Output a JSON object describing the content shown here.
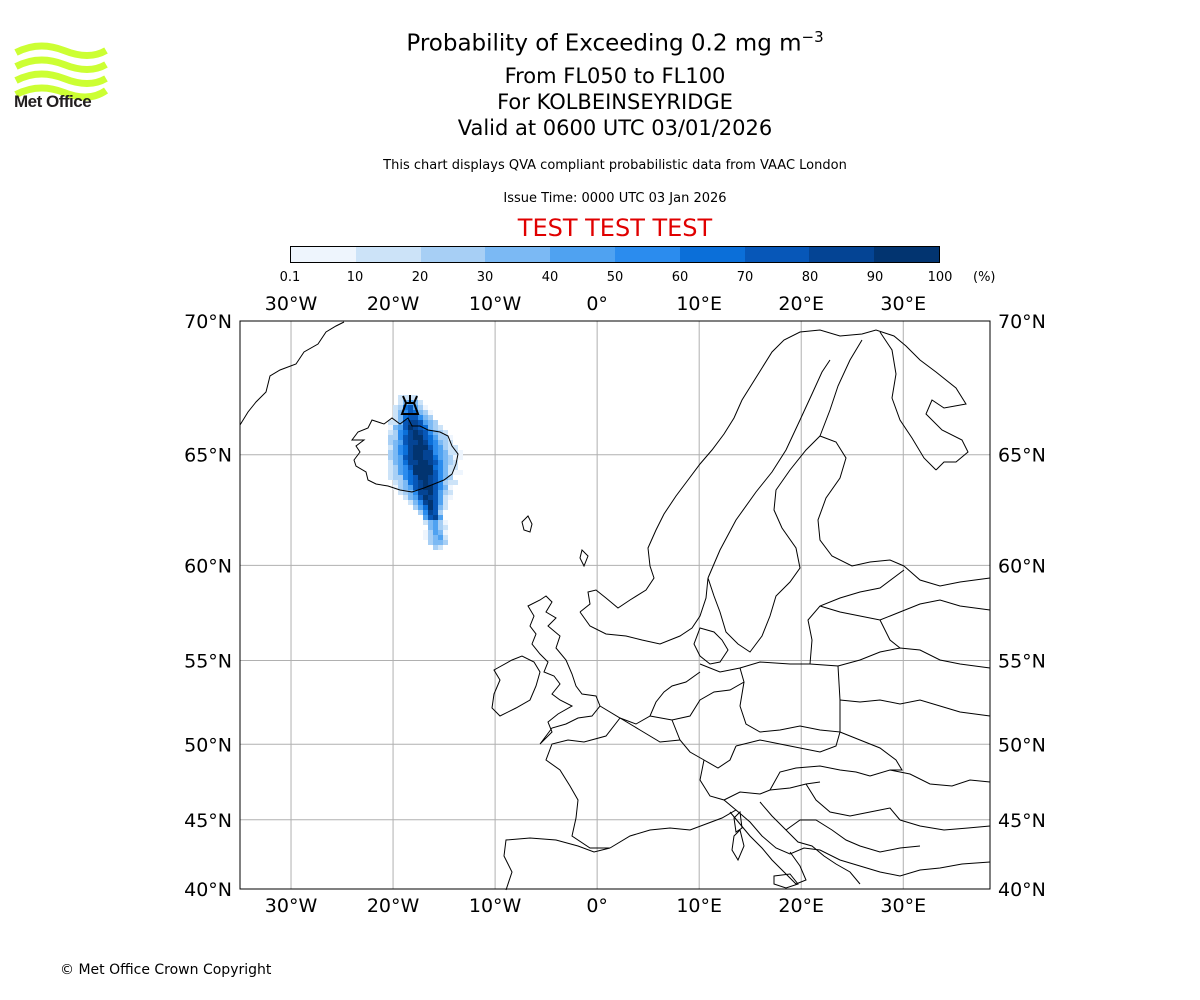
{
  "header": {
    "logo_text": "Met Office",
    "title": "Probability of Exceeding 0.2 mg m",
    "title_superscript": "−3",
    "level_range": "From FL050 to FL100",
    "location": "For KOLBEINSEYRIDGE",
    "valid_time": "Valid at 0600 UTC 03/01/2026",
    "disclaimer": "This chart displays QVA compliant probabilistic data from VAAC London",
    "issue_time": "Issue Time: 0000 UTC 03 Jan 2026",
    "test_banner": "TEST TEST TEST"
  },
  "colorbar": {
    "ticks": [
      "0.1",
      "10",
      "20",
      "30",
      "40",
      "50",
      "60",
      "70",
      "80",
      "90",
      "100"
    ],
    "unit": "(%)",
    "colors": [
      "#eef5fd",
      "#cce3f8",
      "#a7cff5",
      "#7bb9f4",
      "#4fa2f1",
      "#2b8cee",
      "#0b6fd9",
      "#0757b8",
      "#044494",
      "#023470"
    ]
  },
  "map": {
    "lon_labels": [
      "30°W",
      "20°W",
      "10°W",
      "0°",
      "10°E",
      "20°E",
      "30°E"
    ],
    "lon_values": [
      -30,
      -20,
      -10,
      0,
      10,
      20,
      30
    ],
    "lat_labels": [
      "70°N",
      "65°N",
      "60°N",
      "55°N",
      "50°N",
      "45°N",
      "40°N"
    ],
    "lat_values": [
      70,
      65,
      60,
      55,
      50,
      45,
      40
    ],
    "extent": {
      "lon_min": -35,
      "lon_max": 38.5,
      "lat_min": 40,
      "lat_max": 70
    },
    "volcano_symbol": "volcano-icon",
    "volcano_location": {
      "lon": -18.3,
      "lat": 66.8
    }
  },
  "footer": {
    "copyright": "© Met Office Crown Copyright"
  }
}
